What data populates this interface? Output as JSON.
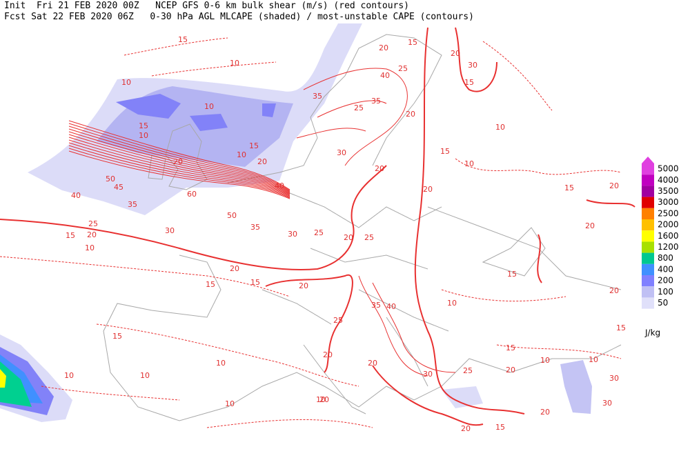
{
  "header": {
    "line1": "Init  Fri 21 FEB 2020 00Z   NCEP GFS 0-6 km bulk shear (m/s) (red contours)",
    "line2": "Fcst Sat 22 FEB 2020 06Z   0-30 hPa AGL MLCAPE (shaded) / most-unstable CAPE (contours)"
  },
  "legend": {
    "levels": [
      {
        "value": 5000,
        "color": "#e040e0"
      },
      {
        "value": 4000,
        "color": "#c000c0"
      },
      {
        "value": 3500,
        "color": "#a000a0"
      },
      {
        "value": 3000,
        "color": "#e00000"
      },
      {
        "value": 2500,
        "color": "#ff8000"
      },
      {
        "value": 2000,
        "color": "#ffc000"
      },
      {
        "value": 1600,
        "color": "#ffff00"
      },
      {
        "value": 1200,
        "color": "#a8e000"
      },
      {
        "value": 800,
        "color": "#00c890"
      },
      {
        "value": 400,
        "color": "#4090ff"
      },
      {
        "value": 200,
        "color": "#8080ff"
      },
      {
        "value": 100,
        "color": "#c0c0f4"
      },
      {
        "value": 50,
        "color": "#e0e0fa"
      }
    ],
    "unit": "J/kg"
  },
  "contour_labels": [
    15,
    10,
    10,
    10,
    15,
    10,
    20,
    50,
    45,
    40,
    35,
    25,
    20,
    15,
    10,
    30,
    60,
    50,
    35,
    30,
    25,
    20,
    25,
    20,
    15,
    15,
    20,
    15,
    10,
    10,
    10,
    10,
    10,
    20,
    25,
    35,
    40,
    30,
    25,
    20,
    20,
    15,
    20,
    30,
    30,
    20,
    15,
    20,
    10,
    15,
    10,
    15,
    30,
    20,
    15,
    20,
    25,
    40,
    35,
    25,
    30,
    20,
    20,
    35,
    20,
    10,
    15,
    40,
    20,
    15,
    10,
    15,
    10,
    20,
    20,
    15,
    10,
    20
  ]
}
